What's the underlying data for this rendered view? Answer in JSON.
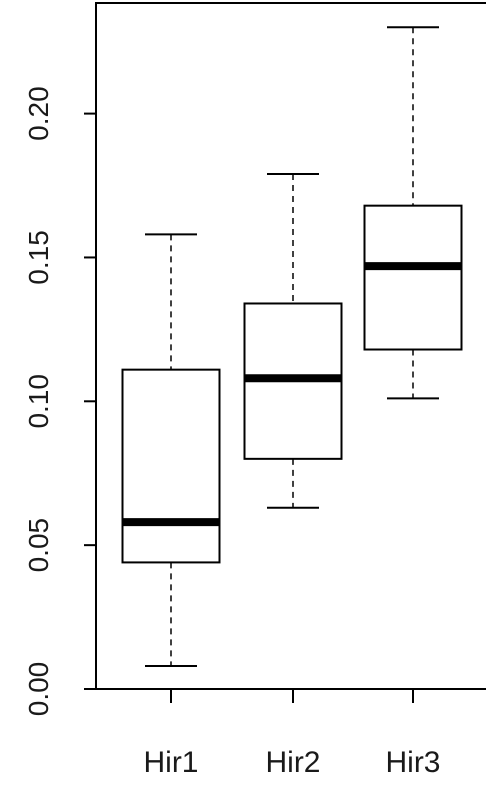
{
  "chart_data": {
    "type": "boxplot",
    "title": "",
    "xlabel": "",
    "ylabel": "",
    "ylim": [
      0.0,
      0.24
    ],
    "y_ticks": [
      "0.00",
      "0.05",
      "0.10",
      "0.15",
      "0.20"
    ],
    "categories": [
      "Hir1",
      "Hir2",
      "Hir3"
    ],
    "boxes": [
      {
        "category": "Hir1",
        "whisker_low": 0.008,
        "q1": 0.044,
        "median": 0.058,
        "q3": 0.111,
        "whisker_high": 0.158
      },
      {
        "category": "Hir2",
        "whisker_low": 0.063,
        "q1": 0.08,
        "median": 0.108,
        "q3": 0.134,
        "whisker_high": 0.179
      },
      {
        "category": "Hir3",
        "whisker_low": 0.101,
        "q1": 0.118,
        "median": 0.147,
        "q3": 0.168,
        "whisker_high": 0.23
      }
    ],
    "grid": false,
    "legend": "none"
  }
}
